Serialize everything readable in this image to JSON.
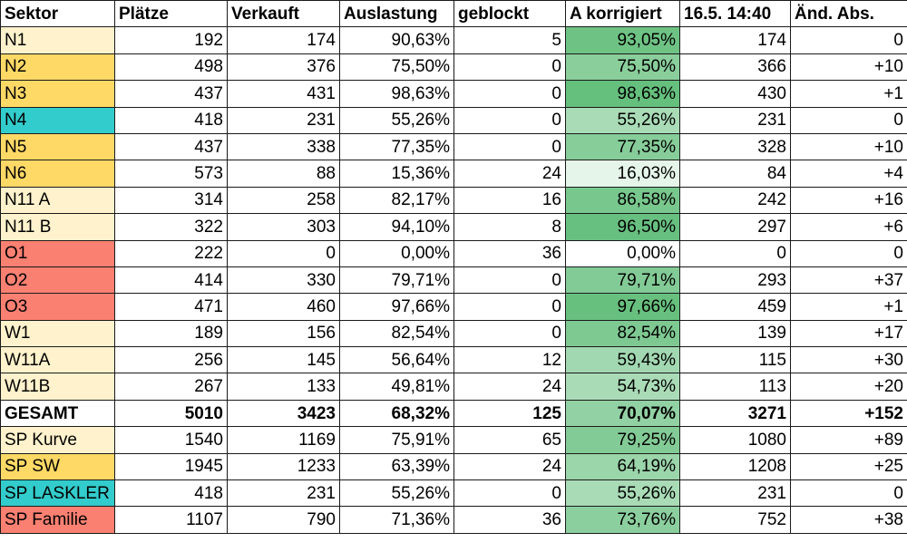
{
  "colors": {
    "light": "#fff2cc",
    "gold": "#ffd966",
    "teal": "#33cccc",
    "red": "#fa8072",
    "white": "#ffffff",
    "green_scale_low": "#ffffff",
    "green_scale_high": "#63be7b"
  },
  "headers": [
    "Sektor",
    "Plätze",
    "Verkauft",
    "Auslastung",
    "geblockt",
    "A korrigiert",
    "16.5. 14:40",
    "Änd. Abs."
  ],
  "rows": [
    {
      "sektor": "N1",
      "color": "#fff2cc",
      "plaetze": "192",
      "verkauft": "174",
      "auslastung": "90,63%",
      "geblockt": "5",
      "a_korrigiert": "93,05%",
      "a_value": 93.05,
      "stand": "174",
      "aend": "0"
    },
    {
      "sektor": "N2",
      "color": "#ffd966",
      "plaetze": "498",
      "verkauft": "376",
      "auslastung": "75,50%",
      "geblockt": "0",
      "a_korrigiert": "75,50%",
      "a_value": 75.5,
      "stand": "366",
      "aend": "+10"
    },
    {
      "sektor": "N3",
      "color": "#ffd966",
      "plaetze": "437",
      "verkauft": "431",
      "auslastung": "98,63%",
      "geblockt": "0",
      "a_korrigiert": "98,63%",
      "a_value": 98.63,
      "stand": "430",
      "aend": "+1"
    },
    {
      "sektor": "N4",
      "color": "#33cccc",
      "plaetze": "418",
      "verkauft": "231",
      "auslastung": "55,26%",
      "geblockt": "0",
      "a_korrigiert": "55,26%",
      "a_value": 55.26,
      "stand": "231",
      "aend": "0"
    },
    {
      "sektor": "N5",
      "color": "#ffd966",
      "plaetze": "437",
      "verkauft": "338",
      "auslastung": "77,35%",
      "geblockt": "0",
      "a_korrigiert": "77,35%",
      "a_value": 77.35,
      "stand": "328",
      "aend": "+10"
    },
    {
      "sektor": "N6",
      "color": "#ffd966",
      "plaetze": "573",
      "verkauft": "88",
      "auslastung": "15,36%",
      "geblockt": "24",
      "a_korrigiert": "16,03%",
      "a_value": 16.03,
      "stand": "84",
      "aend": "+4"
    },
    {
      "sektor": "N11 A",
      "color": "#fff2cc",
      "plaetze": "314",
      "verkauft": "258",
      "auslastung": "82,17%",
      "geblockt": "16",
      "a_korrigiert": "86,58%",
      "a_value": 86.58,
      "stand": "242",
      "aend": "+16"
    },
    {
      "sektor": "N11 B",
      "color": "#fff2cc",
      "plaetze": "322",
      "verkauft": "303",
      "auslastung": "94,10%",
      "geblockt": "8",
      "a_korrigiert": "96,50%",
      "a_value": 96.5,
      "stand": "297",
      "aend": "+6"
    },
    {
      "sektor": "O1",
      "color": "#fa8072",
      "plaetze": "222",
      "verkauft": "0",
      "auslastung": "0,00%",
      "geblockt": "36",
      "a_korrigiert": "0,00%",
      "a_value": 0.0,
      "stand": "0",
      "aend": "0"
    },
    {
      "sektor": "O2",
      "color": "#fa8072",
      "plaetze": "414",
      "verkauft": "330",
      "auslastung": "79,71%",
      "geblockt": "0",
      "a_korrigiert": "79,71%",
      "a_value": 79.71,
      "stand": "293",
      "aend": "+37"
    },
    {
      "sektor": "O3",
      "color": "#fa8072",
      "plaetze": "471",
      "verkauft": "460",
      "auslastung": "97,66%",
      "geblockt": "0",
      "a_korrigiert": "97,66%",
      "a_value": 97.66,
      "stand": "459",
      "aend": "+1"
    },
    {
      "sektor": "W1",
      "color": "#fff2cc",
      "plaetze": "189",
      "verkauft": "156",
      "auslastung": "82,54%",
      "geblockt": "0",
      "a_korrigiert": "82,54%",
      "a_value": 82.54,
      "stand": "139",
      "aend": "+17"
    },
    {
      "sektor": "W11A",
      "color": "#fff2cc",
      "plaetze": "256",
      "verkauft": "145",
      "auslastung": "56,64%",
      "geblockt": "12",
      "a_korrigiert": "59,43%",
      "a_value": 59.43,
      "stand": "115",
      "aend": "+30"
    },
    {
      "sektor": "W11B",
      "color": "#fff2cc",
      "plaetze": "267",
      "verkauft": "133",
      "auslastung": "49,81%",
      "geblockt": "24",
      "a_korrigiert": "54,73%",
      "a_value": 54.73,
      "stand": "113",
      "aend": "+20"
    },
    {
      "sektor": "GESAMT",
      "color": "#ffffff",
      "bold": true,
      "plaetze": "5010",
      "verkauft": "3423",
      "auslastung": "68,32%",
      "geblockt": "125",
      "a_korrigiert": "70,07%",
      "a_value": 70.07,
      "stand": "3271",
      "aend": "+152"
    },
    {
      "sektor": "SP Kurve",
      "color": "#fff2cc",
      "plaetze": "1540",
      "verkauft": "1169",
      "auslastung": "75,91%",
      "geblockt": "65",
      "a_korrigiert": "79,25%",
      "a_value": 79.25,
      "stand": "1080",
      "aend": "+89"
    },
    {
      "sektor": "SP SW",
      "color": "#ffd966",
      "plaetze": "1945",
      "verkauft": "1233",
      "auslastung": "63,39%",
      "geblockt": "24",
      "a_korrigiert": "64,19%",
      "a_value": 64.19,
      "stand": "1208",
      "aend": "+25"
    },
    {
      "sektor": "SP LASKLER",
      "color": "#33cccc",
      "plaetze": "418",
      "verkauft": "231",
      "auslastung": "55,26%",
      "geblockt": "0",
      "a_korrigiert": "55,26%",
      "a_value": 55.26,
      "stand": "231",
      "aend": "0"
    },
    {
      "sektor": "SP Familie",
      "color": "#fa8072",
      "plaetze": "1107",
      "verkauft": "790",
      "auslastung": "71,36%",
      "geblockt": "36",
      "a_korrigiert": "73,76%",
      "a_value": 73.76,
      "stand": "752",
      "aend": "+38"
    }
  ]
}
